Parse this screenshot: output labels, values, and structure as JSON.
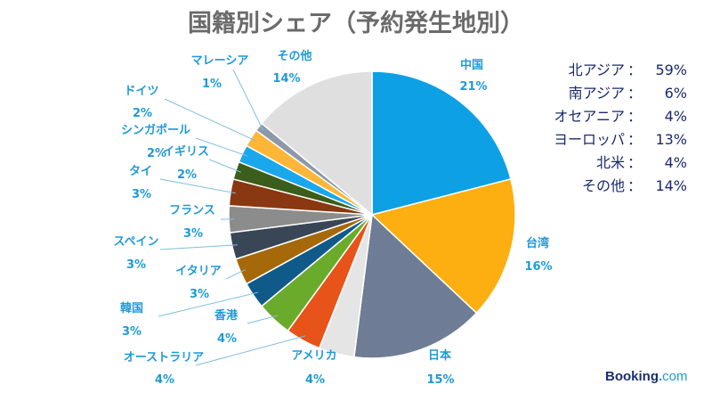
{
  "chart_data": {
    "type": "pie",
    "title": "国籍別シェア（予約発生地別）",
    "unit": "%",
    "slices": [
      {
        "name": "中国",
        "value": 21,
        "label": "21%",
        "color": "#0ea0e4"
      },
      {
        "name": "台湾",
        "value": 16,
        "label": "16%",
        "color": "#fdae10"
      },
      {
        "name": "日本",
        "value": 15,
        "label": "15%",
        "color": "#6e7d95"
      },
      {
        "name": "アメリカ",
        "value": 4,
        "label": "4%",
        "color": "#e5e5e5"
      },
      {
        "name": "オーストラリア",
        "value": 4,
        "label": "4%",
        "color": "#e75319"
      },
      {
        "name": "香港",
        "value": 4,
        "label": "4%",
        "color": "#6aab2c"
      },
      {
        "name": "韓国",
        "value": 3,
        "label": "3%",
        "color": "#105a8a"
      },
      {
        "name": "イタリア",
        "value": 3,
        "label": "3%",
        "color": "#a6690a"
      },
      {
        "name": "スペイン",
        "value": 3,
        "label": "3%",
        "color": "#394656"
      },
      {
        "name": "フランス",
        "value": 3,
        "label": "3%",
        "color": "#8c8c8c"
      },
      {
        "name": "タイ",
        "value": 3,
        "label": "3%",
        "color": "#8a3812"
      },
      {
        "name": "イギリス",
        "value": 2,
        "label": "2%",
        "color": "#3b5e1c"
      },
      {
        "name": "シンガポール",
        "value": 2,
        "label": "2%",
        "color": "#1ba7ec"
      },
      {
        "name": "ドイツ",
        "value": 2,
        "label": "2%",
        "color": "#fdb637"
      },
      {
        "name": "マレーシア",
        "value": 1,
        "label": "1%",
        "color": "#8d98a8"
      },
      {
        "name": "その他",
        "value": 14,
        "label": "14%",
        "color": "#dfdfdf"
      }
    ]
  },
  "summary": [
    {
      "name": "北アジア",
      "sep": "：",
      "value": "59%"
    },
    {
      "name": "南アジア",
      "sep": "：",
      "value": "6%"
    },
    {
      "name": "オセアニア",
      "sep": "：",
      "value": "4%"
    },
    {
      "name": "ヨーロッパ",
      "sep": "：",
      "value": "13%"
    },
    {
      "name": "北米",
      "sep": "：",
      "value": "4%"
    },
    {
      "name": "その他",
      "sep": "：",
      "value": "14%"
    }
  ],
  "brand": {
    "name": "Booking",
    "dot": ".",
    "tld": "com"
  }
}
